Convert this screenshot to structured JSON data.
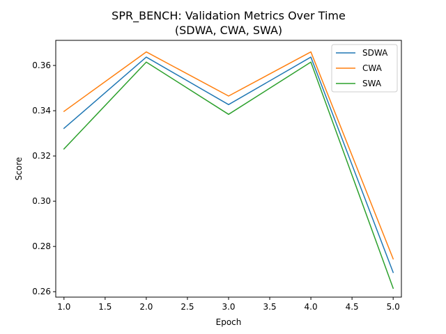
{
  "chart_data": {
    "type": "line",
    "title_line1": "SPR_BENCH: Validation Metrics Over Time",
    "title_line2": "(SDWA, CWA, SWA)",
    "xlabel": "Epoch",
    "ylabel": "Score",
    "x": [
      1.0,
      2.0,
      3.0,
      4.0,
      5.0
    ],
    "xlim": [
      0.9,
      5.1
    ],
    "ylim": [
      0.2576,
      0.3711
    ],
    "xticks": [
      "1.0",
      "1.5",
      "2.0",
      "2.5",
      "3.0",
      "3.5",
      "4.0",
      "4.5",
      "5.0"
    ],
    "yticks": [
      "0.26",
      "0.28",
      "0.30",
      "0.32",
      "0.34",
      "0.36"
    ],
    "grid": false,
    "legend_position": "upper right",
    "series": [
      {
        "name": "SDWA",
        "color": "#1f77b4",
        "values": [
          0.3322,
          0.3637,
          0.3427,
          0.3637,
          0.2685
        ]
      },
      {
        "name": "CWA",
        "color": "#ff7f0e",
        "values": [
          0.3397,
          0.366,
          0.3465,
          0.366,
          0.2745
        ]
      },
      {
        "name": "SWA",
        "color": "#2ca02c",
        "values": [
          0.3231,
          0.3615,
          0.3384,
          0.3615,
          0.2615
        ]
      }
    ]
  }
}
